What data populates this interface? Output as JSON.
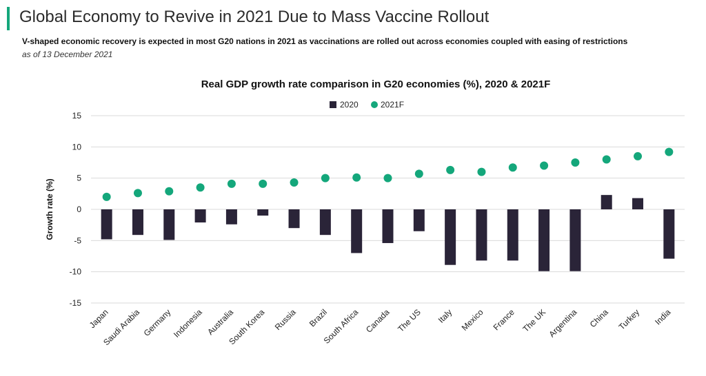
{
  "header": {
    "title": "Global Economy to Revive in 2021 Due to Mass Vaccine Rollout",
    "subtitle": "V-shaped economic recovery is expected in most G20 nations in 2021 as vaccinations are rolled out across economies coupled with easing of restrictions",
    "date_note": "as of 13 December 2021",
    "accent_color": "#14a77b"
  },
  "chart_data": {
    "type": "bar",
    "title": "Real GDP growth rate comparison in G20 economies (%), 2020 & 2021F",
    "xlabel": "",
    "ylabel": "Growth rate (%)",
    "ylim": [
      -15,
      15
    ],
    "yticks": [
      15,
      10,
      5,
      0,
      -5,
      -10,
      -15
    ],
    "grid": true,
    "legend_position": "top-center",
    "categories": [
      "Japan",
      "Saudi Arabia",
      "Germany",
      "Indonesia",
      "Australia",
      "South Korea",
      "Russia",
      "Brazil",
      "South Africa",
      "Canada",
      "The US",
      "Italy",
      "Mexico",
      "France",
      "The UK",
      "Argentina",
      "China",
      "Turkey",
      "India"
    ],
    "series": [
      {
        "name": "2020",
        "mark": "bar",
        "color": "#2a2438",
        "values": [
          -4.8,
          -4.1,
          -4.9,
          -2.1,
          -2.4,
          -1.0,
          -3.0,
          -4.1,
          -7.0,
          -5.4,
          -3.5,
          -8.9,
          -8.2,
          -8.2,
          -9.9,
          -9.9,
          2.3,
          1.8,
          -7.9
        ]
      },
      {
        "name": "2021F",
        "mark": "dot",
        "color": "#14a77b",
        "values": [
          2.0,
          2.6,
          2.9,
          3.5,
          4.1,
          4.1,
          4.3,
          5.0,
          5.1,
          5.0,
          5.7,
          6.3,
          6.0,
          6.7,
          7.0,
          7.5,
          8.0,
          8.5,
          9.2
        ]
      }
    ]
  }
}
